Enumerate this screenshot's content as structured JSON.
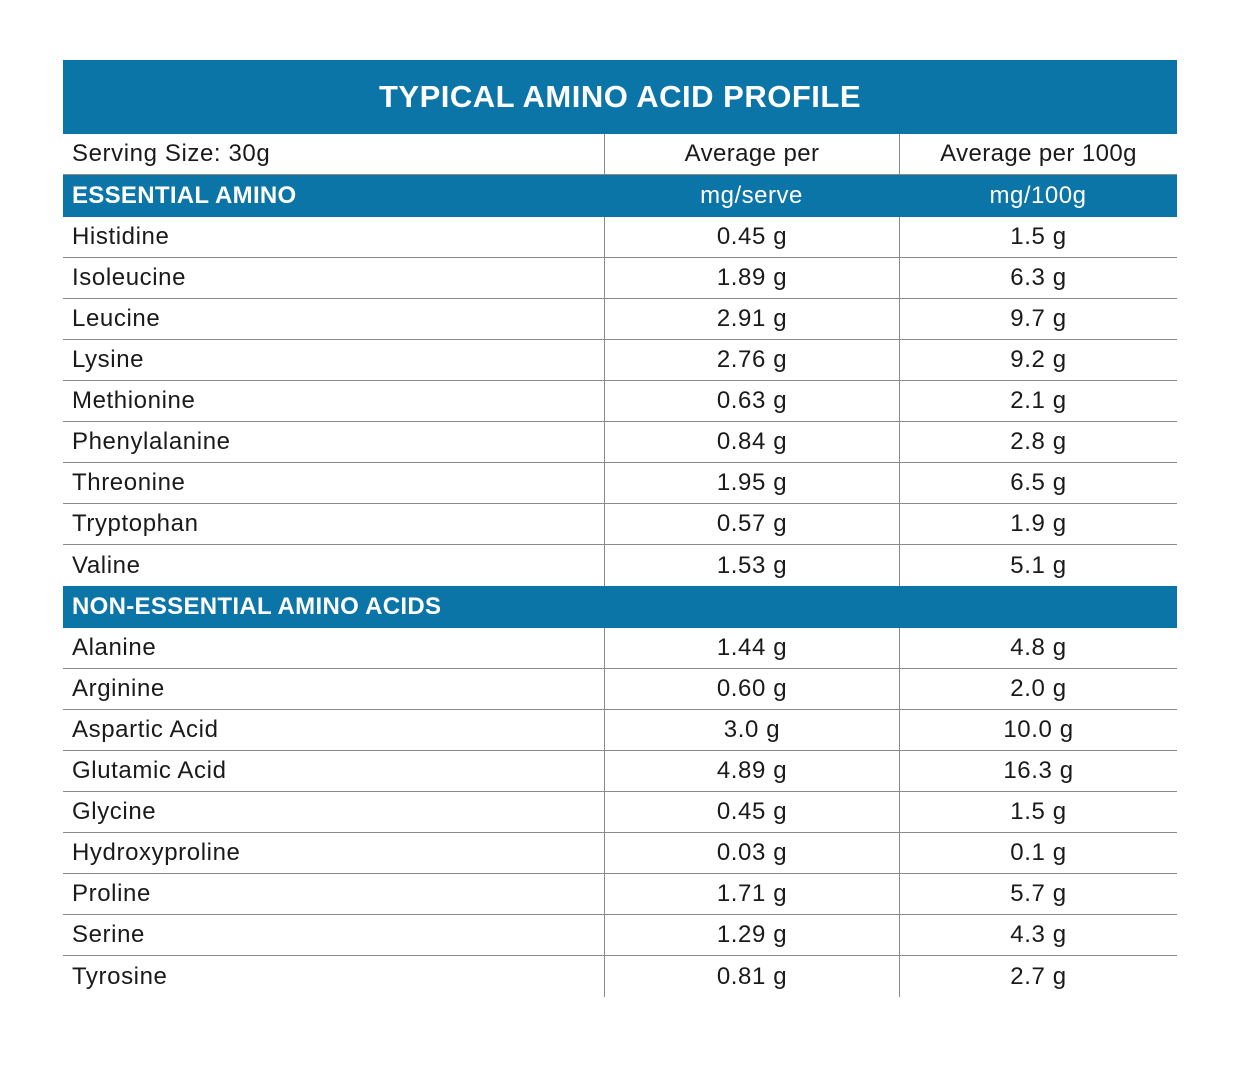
{
  "title": "TYPICAL AMINO ACID PROFILE",
  "header": {
    "serving": "Serving Size: 30g",
    "col2": "Average per",
    "col3": "Average per 100g"
  },
  "essential": {
    "label": "ESSENTIAL AMINO",
    "unit2": "mg/serve",
    "unit3": "mg/100g",
    "rows": [
      {
        "name": "Histidine",
        "serve": "0.45 g",
        "per100": "1.5 g"
      },
      {
        "name": "Isoleucine",
        "serve": "1.89 g",
        "per100": "6.3 g"
      },
      {
        "name": "Leucine",
        "serve": "2.91 g",
        "per100": "9.7 g"
      },
      {
        "name": "Lysine",
        "serve": "2.76 g",
        "per100": "9.2 g"
      },
      {
        "name": "Methionine",
        "serve": "0.63 g",
        "per100": "2.1 g"
      },
      {
        "name": "Phenylalanine",
        "serve": "0.84 g",
        "per100": "2.8 g"
      },
      {
        "name": "Threonine",
        "serve": "1.95 g",
        "per100": "6.5 g"
      },
      {
        "name": "Tryptophan",
        "serve": "0.57 g",
        "per100": "1.9 g"
      },
      {
        "name": "Valine",
        "serve": "1.53 g",
        "per100": "5.1 g"
      }
    ]
  },
  "nonessential": {
    "label": "NON-ESSENTIAL AMINO ACIDS",
    "rows": [
      {
        "name": "Alanine",
        "serve": "1.44 g",
        "per100": "4.8 g"
      },
      {
        "name": "Arginine",
        "serve": "0.60 g",
        "per100": "2.0 g"
      },
      {
        "name": "Aspartic Acid",
        "serve": "3.0 g",
        "per100": "10.0 g"
      },
      {
        "name": "Glutamic Acid",
        "serve": "4.89 g",
        "per100": "16.3 g"
      },
      {
        "name": "Glycine",
        "serve": "0.45 g",
        "per100": "1.5 g"
      },
      {
        "name": "Hydroxyproline",
        "serve": "0.03 g",
        "per100": "0.1 g"
      },
      {
        "name": "Proline",
        "serve": "1.71 g",
        "per100": "5.7 g"
      },
      {
        "name": "Serine",
        "serve": "1.29 g",
        "per100": "4.3 g"
      },
      {
        "name": "Tyrosine",
        "serve": "0.81 g",
        "per100": "2.7 g"
      }
    ]
  },
  "colors": {
    "accent": "#0b75a8",
    "rule": "#8a8a8a"
  }
}
